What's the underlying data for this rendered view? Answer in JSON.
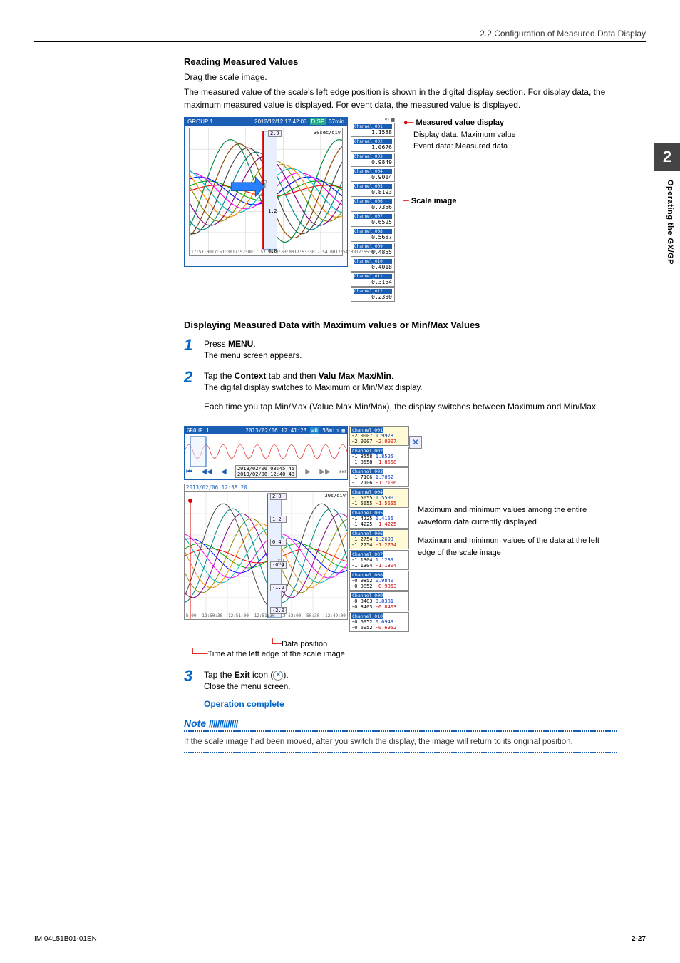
{
  "header": {
    "breadcrumb": "2.2  Configuration of Measured Data Display"
  },
  "side": {
    "chapter": "2",
    "label": "Operating the GX/GP"
  },
  "s1": {
    "title": "Reading Measured Values",
    "p1": "Drag the scale image.",
    "p2": "The measured value of the scale's left edge position is shown in the digital display section. For display data, the maximum measured value is displayed. For event data, the measured value is displayed."
  },
  "fig1": {
    "group": "GROUP 1",
    "timestamp": "2012/12/12 17:42:03",
    "disp_flag": "DISP",
    "time_win": "37min",
    "scale_top": "2.0",
    "scale_rate": "30sec/div",
    "scale_mid": "1.2",
    "scale_bot": "0.0",
    "xticks": [
      "17:51:00",
      "17:51:30",
      "17:52:00",
      "17:52:30",
      "17:53:00",
      "17:53:30",
      "17:54:00",
      "17:54:30",
      "17:55:00"
    ],
    "channels": [
      {
        "label": "Channel_001",
        "value": "1.1588"
      },
      {
        "label": "Channel_002",
        "value": "1.0676"
      },
      {
        "label": "Channel_003",
        "value": "0.9849"
      },
      {
        "label": "Channel_004",
        "value": "0.9014"
      },
      {
        "label": "Channel_005",
        "value": "0.8193"
      },
      {
        "label": "Channel_006",
        "value": "0.7356"
      },
      {
        "label": "Channel_007",
        "value": "0.6525"
      },
      {
        "label": "Channel_008",
        "value": "0.5687"
      },
      {
        "label": "Channel_009",
        "value": "0.4855"
      },
      {
        "label": "Channel_010",
        "value": "0.4018"
      },
      {
        "label": "Channel_011",
        "value": "0.3164"
      },
      {
        "label": "Channel_012",
        "value": "0.2330"
      }
    ],
    "annot_measured": "Measured value display",
    "annot_disp": "Display data: Maximum value",
    "annot_event": "Event data: Measured data",
    "annot_scale": "Scale image",
    "line_colors": [
      "#ff0000",
      "#00aa00",
      "#0000ff",
      "#ff00ff",
      "#00bbbb",
      "#ff8800",
      "#888800",
      "#880088",
      "#008888",
      "#444444",
      "#884400",
      "#008844"
    ]
  },
  "s2": {
    "title": "Displaying Measured Data with Maximum values or Min/Max Values"
  },
  "steps": {
    "n1": "1",
    "n2": "2",
    "n3": "3",
    "s1_l1": "Press ",
    "s1_b": "MENU",
    "s1_l2": ".",
    "s1_sub": "The menu screen appears.",
    "s2_l1": "Tap the ",
    "s2_b1": "Context",
    "s2_l2": " tab and then ",
    "s2_b2": "Valu Max Max/Min",
    "s2_l3": ".",
    "s2_sub": "The digital display switches to Maximum or Min/Max display.",
    "s2_p": "Each time you tap Min/Max (Value Max Min/Max), the display switches between Maximum and Min/Max.",
    "s3_l1": "Tap the ",
    "s3_b": "Exit",
    "s3_l2": " icon (",
    "s3_l3": ").",
    "s3_sub": "Close the menu screen."
  },
  "fig2": {
    "group": "GROUP 1",
    "timestamp": "2013/02/06 12:41:23",
    "time_win": "53min",
    "hist_t1": "2013/02/06 08:45:45",
    "hist_t2": "2013/02/06 12:40:48",
    "time_left": "2013/02/06 12:38:20",
    "scale_labels": [
      "2.0",
      "1.2",
      "0.4",
      "-0.4",
      "-1.2",
      "-2.0"
    ],
    "scale_rate": "30s/div",
    "xticks": [
      "b:00",
      "12:50:30",
      "12:51:00",
      "12:51:30",
      "12:52:00",
      "50:30",
      "12:49:00"
    ],
    "channels": [
      {
        "hdr": "Channel_001",
        "a1": "-2.0007",
        "a2": "-2.0007",
        "b1": "1.9978",
        "b2": "-2.0007",
        "hi": true
      },
      {
        "hdr": "Channel_002",
        "a1": "-1.8558",
        "a2": "-1.8558",
        "b1": "1.8525",
        "b2": "-1.8558"
      },
      {
        "hdr": "Channel_003",
        "a1": "-1.7106",
        "a2": "-1.7106",
        "b1": "1.7062",
        "b2": "-1.7106"
      },
      {
        "hdr": "Channel_004",
        "a1": "-1.5655",
        "a2": "-1.5655",
        "b1": "1.5590",
        "b2": "-1.5655",
        "hi": true
      },
      {
        "hdr": "Channel_005",
        "a1": "-1.4225",
        "a2": "-1.4225",
        "b1": "1.4165",
        "b2": "-1.4225"
      },
      {
        "hdr": "Channel_006",
        "a1": "-1.2754",
        "a2": "-1.2754",
        "b1": "1.2693",
        "b2": "-1.2754",
        "hi": true
      },
      {
        "hdr": "Channel_007",
        "a1": "-1.1304",
        "a2": "-1.1304",
        "b1": "1.1289",
        "b2": "-1.1304"
      },
      {
        "hdr": "Channel_008",
        "a1": "-0.9852",
        "a2": "-0.9852",
        "b1": "0.9840",
        "b2": "-0.9853"
      },
      {
        "hdr": "Channel_009",
        "a1": "-0.8403",
        "a2": "-0.8403",
        "b1": "0.8381",
        "b2": "-0.8403"
      },
      {
        "hdr": "Channel_010",
        "a1": "-0.6952",
        "a2": "-0.6952",
        "b1": "0.6949",
        "b2": "-0.6952"
      }
    ],
    "annot_maxmin": "Maximum and minimum values among the entire waveform data currently displayed",
    "annot_left": "Maximum and minimum values of the data at the left edge of the scale image",
    "cap_data_pos": "Data position",
    "cap_time": "Time at the left edge of the scale image"
  },
  "op_complete": "Operation complete",
  "note": {
    "head": "Note",
    "body": "If the scale image had been moved, after you switch the display, the image will return to its original position."
  },
  "footer": {
    "left": "IM 04L51B01-01EN",
    "right": "2-27"
  }
}
